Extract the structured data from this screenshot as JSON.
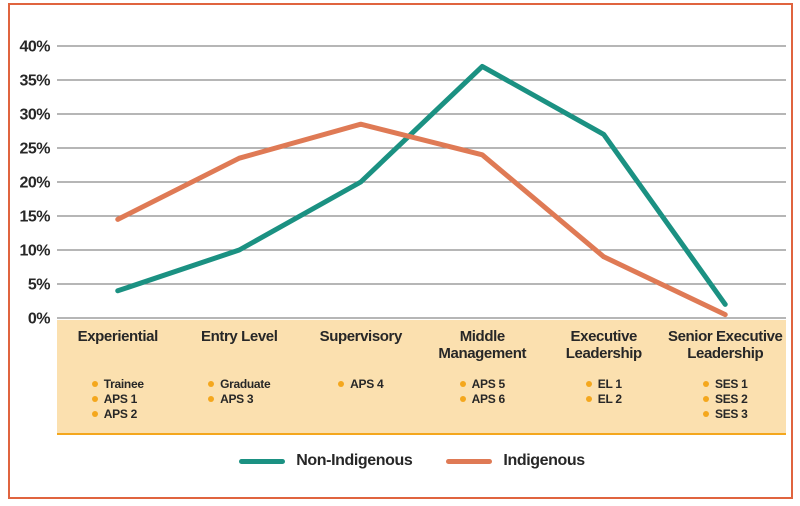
{
  "frame": {
    "border_color": "#E0643F"
  },
  "chart_data": {
    "type": "line",
    "title": "",
    "xlabel": "",
    "ylabel": "",
    "categories": [
      {
        "label": "Experiential",
        "sub_items": [
          "Trainee",
          "APS 1",
          "APS 2"
        ]
      },
      {
        "label": "Entry Level",
        "sub_items": [
          "Graduate",
          "APS 3"
        ]
      },
      {
        "label": "Supervisory",
        "sub_items": [
          "APS 4"
        ]
      },
      {
        "label": "Middle Management",
        "sub_items": [
          "APS 5",
          "APS 6"
        ]
      },
      {
        "label": "Executive Leadership",
        "sub_items": [
          "EL 1",
          "EL 2"
        ]
      },
      {
        "label": "Senior Executive Leadership",
        "sub_items": [
          "SES 1",
          "SES 2",
          "SES 3"
        ]
      }
    ],
    "series": [
      {
        "name": "Non-Indigenous",
        "color": "#1B9182",
        "values": [
          4,
          10,
          20,
          37,
          27,
          2
        ]
      },
      {
        "name": "Indigenous",
        "color": "#DF7A55",
        "values": [
          14.5,
          23.5,
          28.5,
          24,
          9,
          0.5
        ]
      }
    ],
    "y_axis": {
      "min": 0,
      "max": 40,
      "step": 5,
      "tick_suffix": "%",
      "ticks": [
        "0%",
        "5%",
        "10%",
        "15%",
        "20%",
        "25%",
        "30%",
        "35%",
        "40%"
      ]
    },
    "grid": true,
    "gridline_color": "#8A8A8A",
    "tick_label_color": "#272727",
    "band_color": "#FBE0AF",
    "band_rule_color": "#F4A71D",
    "bullet_color": "#F4A71D",
    "legend_position": "bottom"
  }
}
